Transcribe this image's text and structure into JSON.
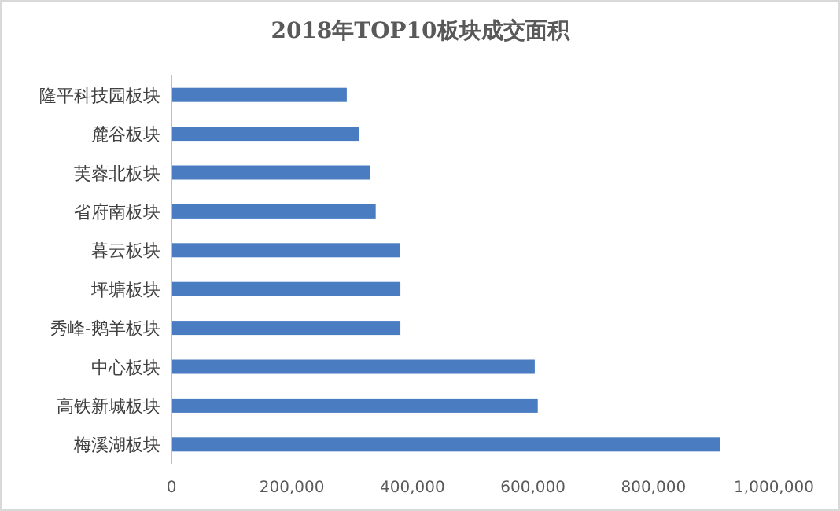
{
  "chart_data": {
    "type": "bar",
    "orientation": "horizontal",
    "title": "2018年TOP10板块成交面积",
    "categories": [
      "隆平科技园板块",
      "麓谷板块",
      "芙蓉北板块",
      "省府南板块",
      "暮云板块",
      "坪塘板块",
      "秀峰-鹅羊板块",
      "中心板块",
      "高铁新城板块",
      "梅溪湖板块"
    ],
    "values": [
      291000,
      311000,
      329000,
      339000,
      379000,
      380000,
      380000,
      603000,
      608000,
      911000
    ],
    "color": "#4a7cc2",
    "xlim": [
      0,
      1000000
    ],
    "xticks": [
      {
        "value": 0,
        "label": "0"
      },
      {
        "value": 200000,
        "label": "200,000"
      },
      {
        "value": 400000,
        "label": "400,000"
      },
      {
        "value": 600000,
        "label": "600,000"
      },
      {
        "value": 800000,
        "label": "800,000"
      },
      {
        "value": 1000000,
        "label": "1,000,000"
      }
    ],
    "grid": false
  }
}
